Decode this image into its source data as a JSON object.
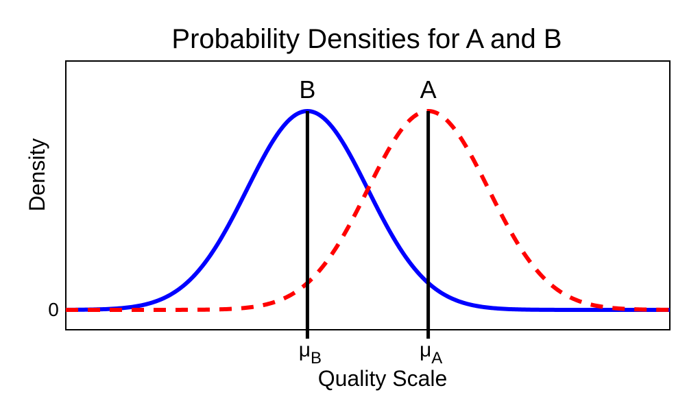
{
  "chart_data": {
    "type": "line",
    "title": "Probability Densities for A and B",
    "xlabel": "Quality Scale",
    "ylabel": "Density",
    "y_tick_labels": [
      "0"
    ],
    "x_tick_labels": [
      {
        "symbol": "μ",
        "subscript": "B"
      },
      {
        "symbol": "μ",
        "subscript": "A"
      }
    ],
    "xlim": [
      -4,
      6
    ],
    "ylim": [
      0,
      1.1
    ],
    "grid": false,
    "series": [
      {
        "name": "B",
        "mean": 0,
        "sd": 1,
        "color": "#0000ff",
        "style": "solid"
      },
      {
        "name": "A",
        "mean": 2,
        "sd": 1,
        "color": "#ff0000",
        "style": "dashed"
      }
    ],
    "mean_lines": [
      {
        "series": "B",
        "x": 0
      },
      {
        "series": "A",
        "x": 2
      }
    ]
  }
}
